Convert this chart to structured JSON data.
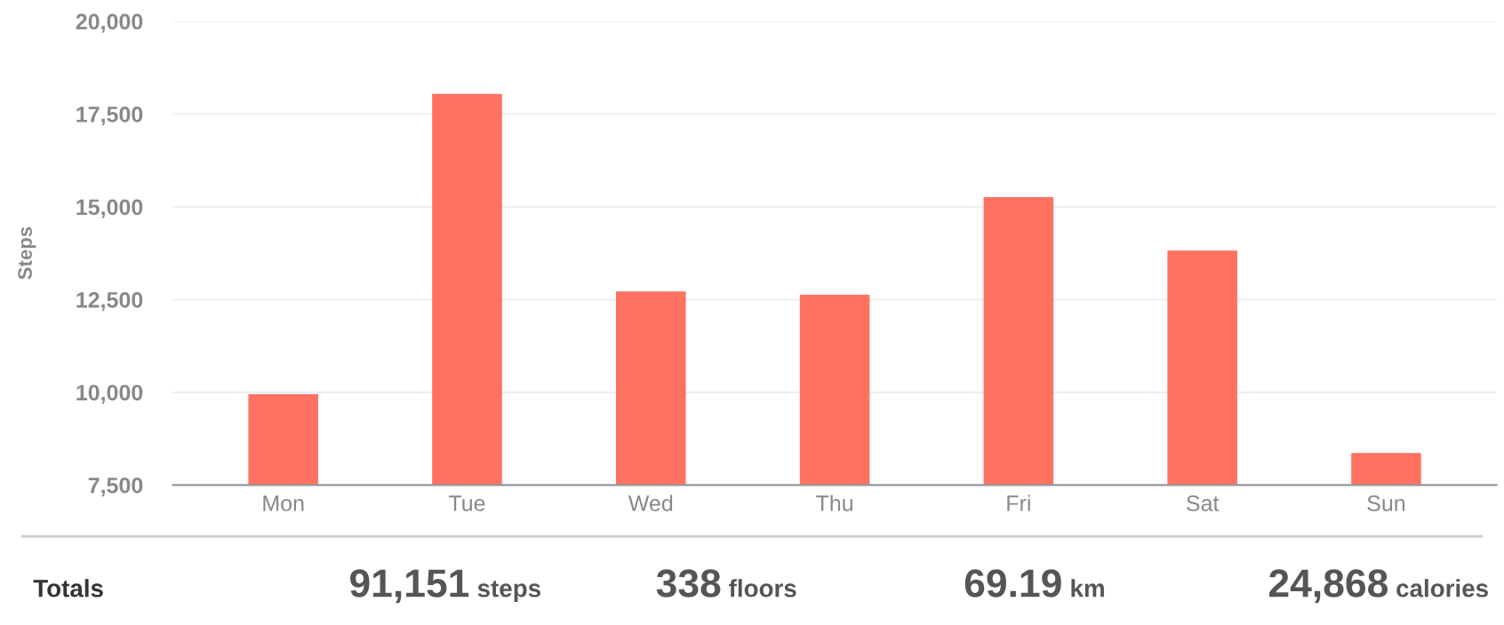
{
  "chart_data": {
    "type": "bar",
    "ylabel": "Steps",
    "categories": [
      "Mon",
      "Tue",
      "Wed",
      "Thu",
      "Fri",
      "Sat",
      "Sun"
    ],
    "values": [
      9950,
      18040,
      12720,
      12630,
      15260,
      13820,
      8360
    ],
    "color": "#ff7262",
    "ylim": [
      7500,
      20000
    ],
    "yticks": [
      {
        "value": 7500,
        "label": "7,500"
      },
      {
        "value": 10000,
        "label": "10,000"
      },
      {
        "value": 12500,
        "label": "12,500"
      },
      {
        "value": 15000,
        "label": "15,000"
      },
      {
        "value": 17500,
        "label": "17,500"
      },
      {
        "value": 20000,
        "label": "20,000"
      }
    ],
    "grid": "y",
    "annotations": [
      "Totals",
      "91,151",
      "steps",
      "338",
      "floors",
      "69.19",
      "km",
      "24,868",
      "calories"
    ]
  }
}
